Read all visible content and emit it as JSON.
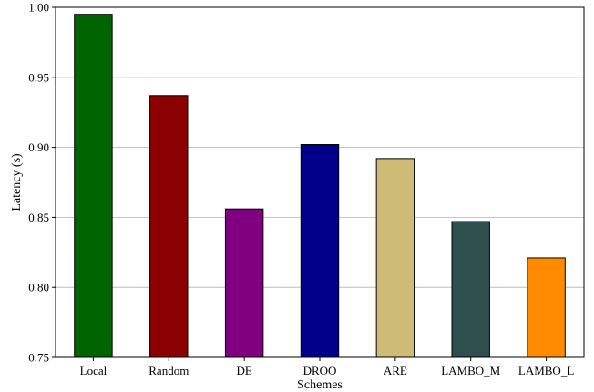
{
  "chart_data": {
    "type": "bar",
    "title": "",
    "xlabel": "Schemes",
    "ylabel": "Latency (s)",
    "ylim": [
      0.75,
      1.0
    ],
    "yticks": [
      0.75,
      0.8,
      0.85,
      0.9,
      0.95,
      1.0
    ],
    "ytick_labels": [
      "0.75",
      "0.80",
      "0.85",
      "0.90",
      "0.95",
      "1.00"
    ],
    "grid": "horizontal",
    "categories": [
      "Local",
      "Random",
      "DE",
      "DROO",
      "ARE",
      "LAMBO_M",
      "LAMBO_L"
    ],
    "values": [
      0.995,
      0.937,
      0.856,
      0.902,
      0.892,
      0.847,
      0.821
    ],
    "colors": [
      "#006400",
      "#8b0000",
      "#800080",
      "#00008b",
      "#cdbb76",
      "#2f4f4f",
      "#ff8c00"
    ]
  }
}
